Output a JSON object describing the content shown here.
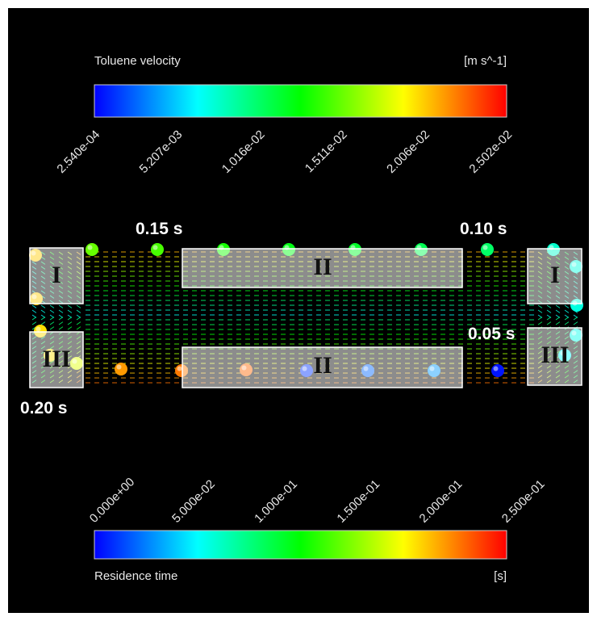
{
  "velocity_bar": {
    "title": "Toluene velocity",
    "unit": "[m s^-1]",
    "ticks": [
      "2.540e-04",
      "5.207e-03",
      "1.016e-02",
      "1.511e-02",
      "2.006e-02",
      "2.502e-02"
    ]
  },
  "residence_bar": {
    "title": "Residence time",
    "unit": "[s]",
    "ticks": [
      "0.000e+00",
      "5.000e-02",
      "1.000e-01",
      "1.500e-01",
      "2.000e-01",
      "2.500e-01"
    ]
  },
  "time_labels": [
    "0.15 s",
    "0.10 s",
    "0.05 s",
    "0.20 s"
  ],
  "regions": [
    "I",
    "II",
    "III",
    "I",
    "II",
    "III"
  ]
}
